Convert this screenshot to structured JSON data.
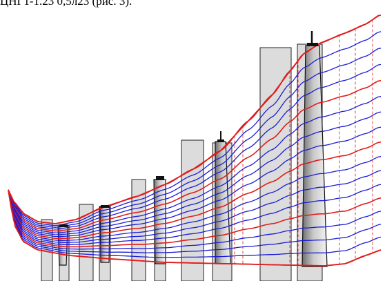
{
  "caption": "ЦНГ1-1.23 0,5л23 (рис. 3).",
  "colors": {
    "blue_line": "#1c1cd6",
    "red_line": "#e01c1c",
    "dashed_line": "#e0403c",
    "rect_fill": "#dcdcdc",
    "rect_stroke": "#222222",
    "blade_dark": "#7a7a7a",
    "blade_light": "#f2f2f2"
  },
  "diagram": {
    "type": "compressor-flowpath-meridional-streamlines",
    "stage_count": 5,
    "streamline_colors_pattern": [
      "red",
      "blue",
      "blue",
      "blue",
      "blue",
      "red"
    ]
  }
}
